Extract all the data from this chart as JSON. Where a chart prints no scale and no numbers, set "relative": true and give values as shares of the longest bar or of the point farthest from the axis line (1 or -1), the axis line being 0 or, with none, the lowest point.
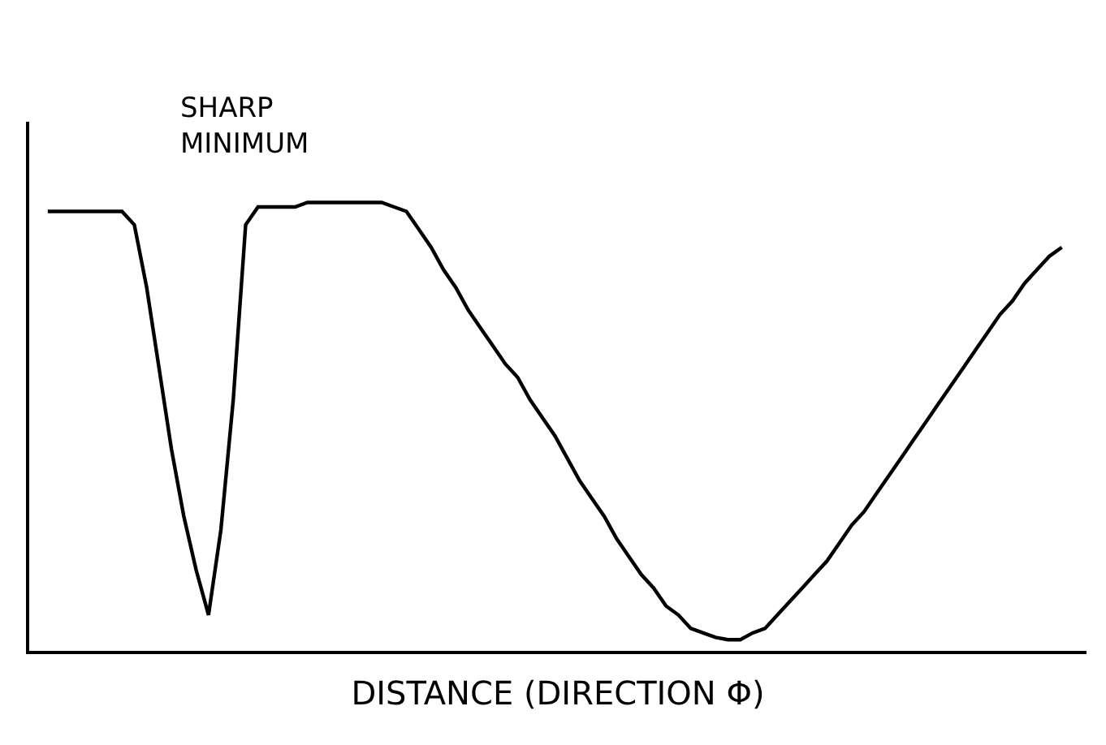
{
  "chart_data": {
    "type": "line",
    "relative": true,
    "xlabel": "DISTANCE (DIRECTION Φ)",
    "annotations": [
      "SHARP\nMINIMUM"
    ],
    "categories": [
      null,
      null,
      null,
      null,
      null,
      null,
      null,
      null,
      null,
      null,
      null,
      null,
      null,
      null,
      null,
      null,
      null,
      null,
      null,
      null,
      null,
      null,
      null,
      null,
      null,
      null,
      null,
      null,
      null,
      null,
      null,
      null,
      null,
      null,
      null,
      null,
      null,
      null,
      null,
      null,
      null,
      null,
      null,
      null,
      null,
      null,
      null,
      null,
      null,
      null,
      null,
      null,
      null,
      null,
      null,
      null,
      null,
      null,
      null,
      null,
      null,
      null,
      null,
      null,
      null,
      null,
      null,
      null,
      null,
      null,
      null,
      null,
      null,
      null,
      null,
      null,
      null,
      null,
      null,
      null,
      null,
      null,
      null
    ],
    "series": [
      {
        "color": "#000000",
        "values": [
          0.98,
          0.98,
          0.98,
          0.98,
          0.98,
          0.98,
          0.98,
          0.95,
          0.81,
          0.63,
          0.45,
          0.3,
          0.18,
          0.08,
          0.27,
          0.56,
          0.95,
          0.99,
          0.99,
          0.99,
          0.99,
          1.0,
          1.0,
          1.0,
          1.0,
          1.0,
          1.0,
          1.0,
          0.99,
          0.98,
          0.94,
          0.9,
          0.85,
          0.81,
          0.76,
          0.72,
          0.68,
          0.64,
          0.61,
          0.56,
          0.52,
          0.48,
          0.43,
          0.38,
          0.34,
          0.3,
          0.25,
          0.21,
          0.17,
          0.14,
          0.1,
          0.08,
          0.05,
          0.04,
          0.03,
          0.025,
          0.025,
          0.04,
          0.05,
          0.08,
          0.11,
          0.14,
          0.17,
          0.2,
          0.24,
          0.28,
          0.31,
          0.35,
          0.39,
          0.43,
          0.47,
          0.51,
          0.55,
          0.59,
          0.63,
          0.67,
          0.71,
          0.75,
          0.78,
          0.82,
          0.85,
          0.88,
          0.9
        ]
      }
    ]
  }
}
